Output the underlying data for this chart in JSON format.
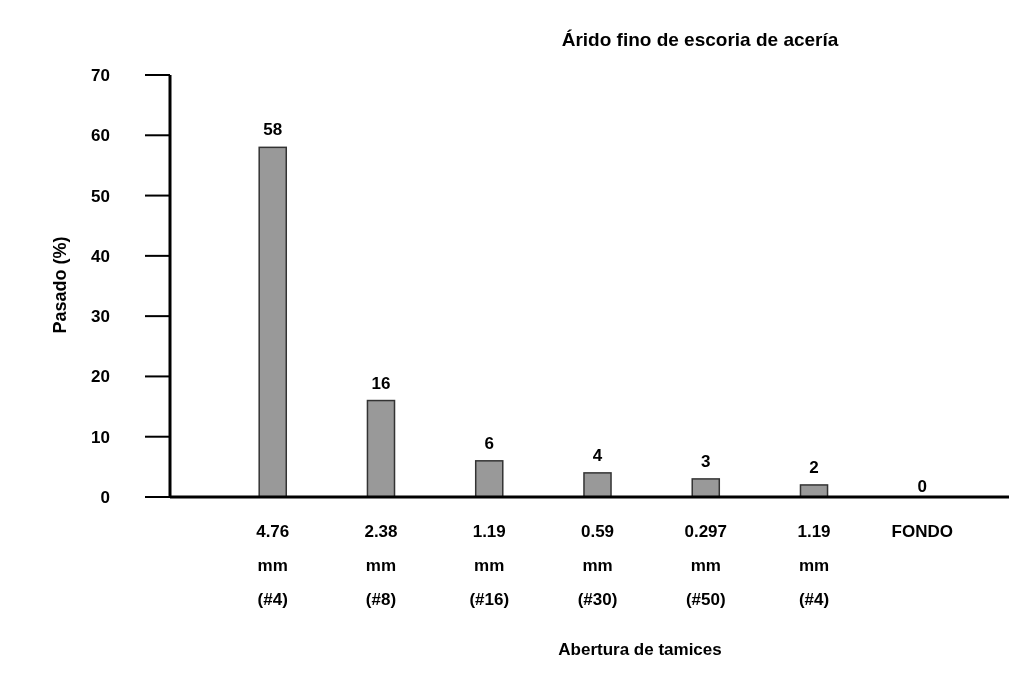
{
  "chart_data": {
    "type": "bar",
    "title": "Árido fino de escoria de acería",
    "xlabel": "Abertura de tamices",
    "ylabel": "Pasado (%)",
    "categories": [
      "4.76 mm (#4)",
      "2.38 mm (#8)",
      "1.19 mm (#16)",
      "0.59 mm (#30)",
      "0.297 mm (#50)",
      "1.19 mm (#4)",
      "FONDO"
    ],
    "values": [
      58,
      16,
      6,
      4,
      3,
      2,
      0
    ],
    "color": "#999999",
    "ylim": [
      0,
      70
    ],
    "yticks": [
      0,
      10,
      20,
      30,
      40,
      50,
      60,
      70
    ],
    "data_labels": true,
    "grid": false
  }
}
